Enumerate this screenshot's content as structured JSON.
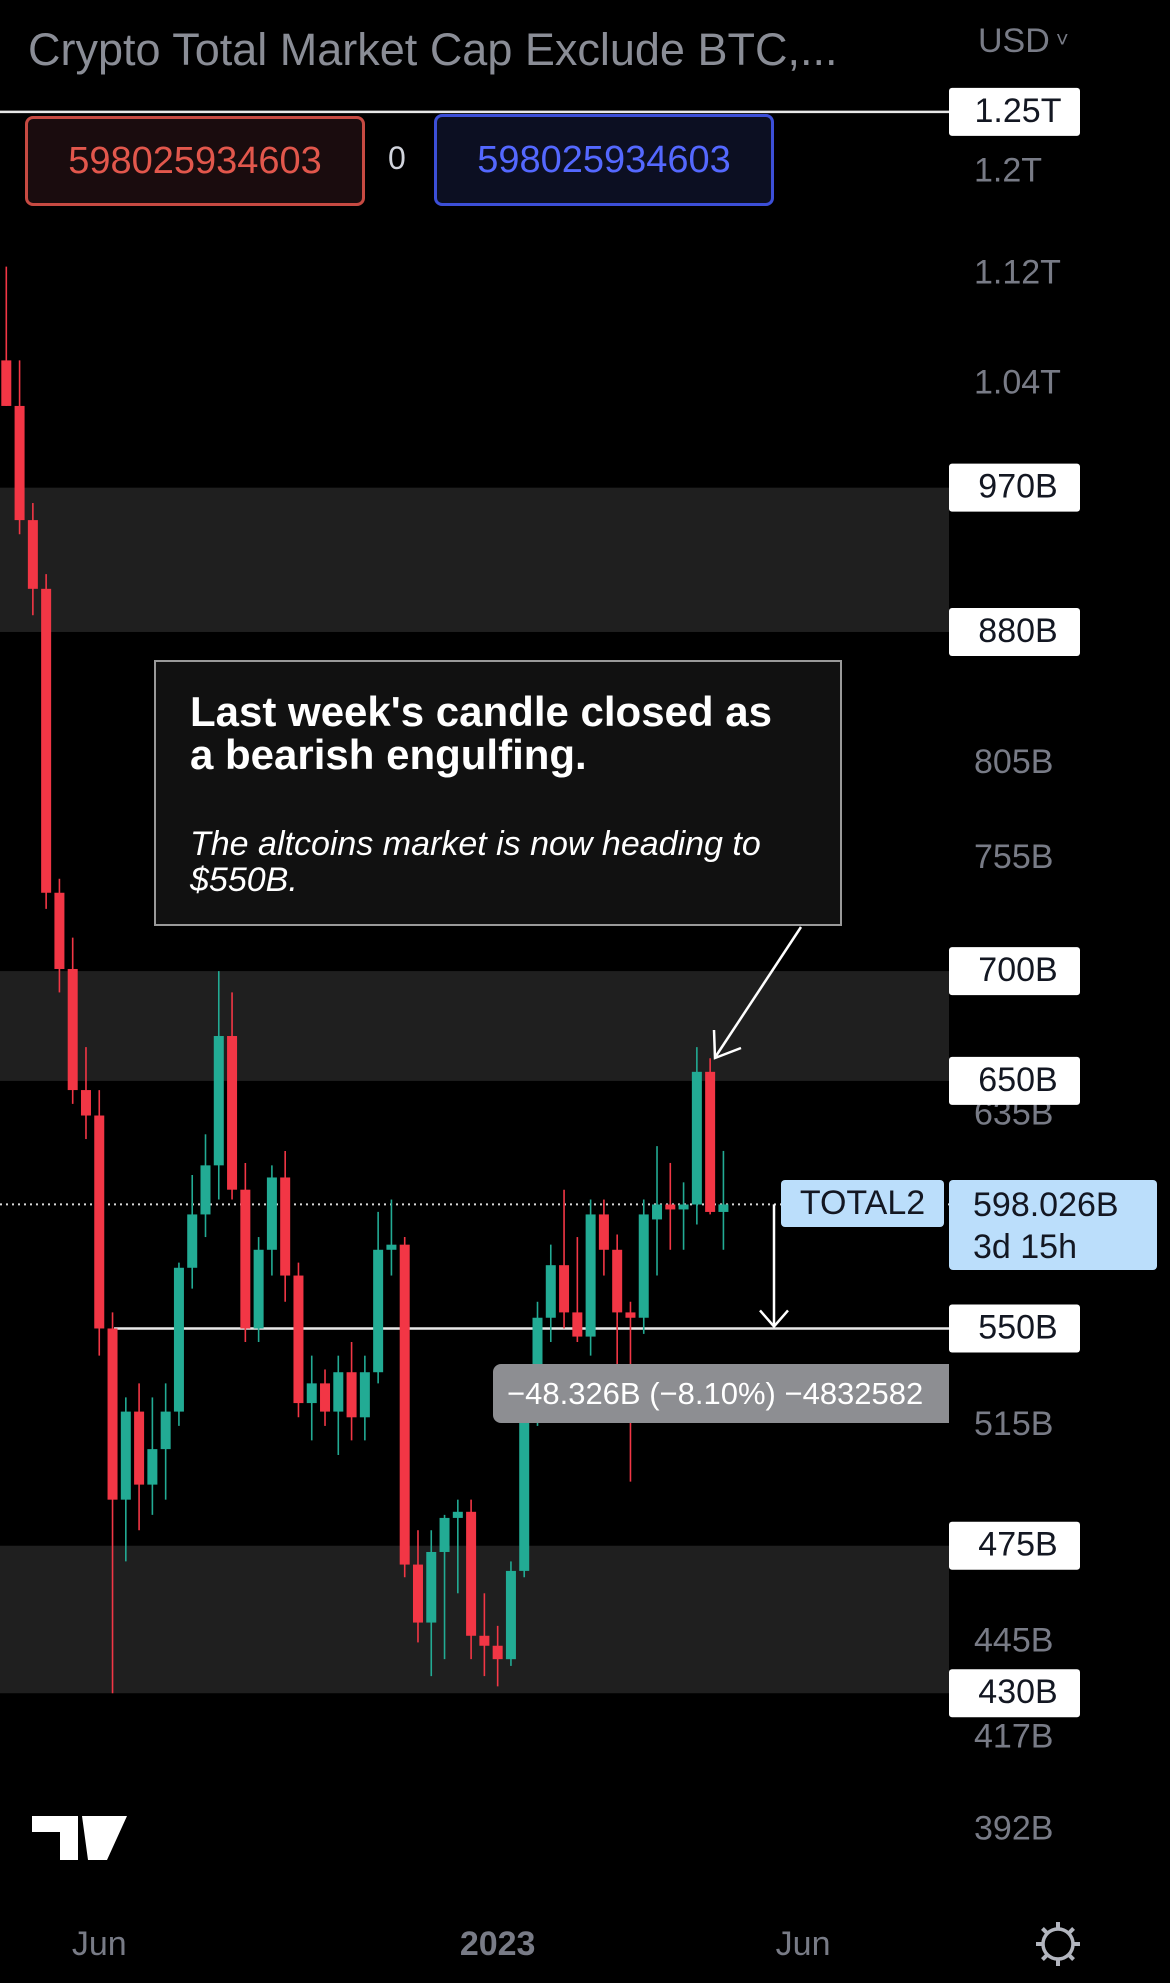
{
  "header": {
    "title": "Crypto Total Market Cap Exclude BTC,...",
    "currency": "USD"
  },
  "order": {
    "sell": "598025934603",
    "qty": "0",
    "buy": "598025934603"
  },
  "chart_data": {
    "type": "candlestick",
    "log_scale": true,
    "ylim": [
      374,
      1348
    ],
    "yticks": [
      {
        "value": 1200,
        "label": "1.2T"
      },
      {
        "value": 1120,
        "label": "1.12T"
      },
      {
        "value": 1040,
        "label": "1.04T"
      },
      {
        "value": 805,
        "label": "805B"
      },
      {
        "value": 755,
        "label": "755B"
      },
      {
        "value": 635,
        "label": "635B"
      },
      {
        "value": 515,
        "label": "515B"
      },
      {
        "value": 445,
        "label": "445B"
      },
      {
        "value": 417,
        "label": "417B"
      },
      {
        "value": 392,
        "label": "392B"
      }
    ],
    "levels": [
      {
        "value": 1250,
        "label": "1.25T"
      },
      {
        "value": 970,
        "label": "970B"
      },
      {
        "value": 880,
        "label": "880B"
      },
      {
        "value": 700,
        "label": "700B"
      },
      {
        "value": 650,
        "label": "650B"
      },
      {
        "value": 550,
        "label": "550B"
      },
      {
        "value": 475,
        "label": "475B"
      },
      {
        "value": 430,
        "label": "430B"
      }
    ],
    "zones": [
      [
        970,
        880
      ],
      [
        700,
        650
      ],
      [
        475,
        430
      ]
    ],
    "xticks": [
      {
        "value": 7,
        "label": "Jun"
      },
      {
        "value": 37,
        "label": "2023"
      },
      {
        "value": 60,
        "label": "Jun"
      }
    ],
    "up_color": "#22ab94",
    "down_color": "#f23645",
    "candles": [
      {
        "open": 1057,
        "high": 1126,
        "low": 1025,
        "close": 1025
      },
      {
        "open": 1025,
        "high": 1057,
        "low": 940,
        "close": 949
      },
      {
        "open": 949,
        "high": 960,
        "low": 890,
        "close": 906
      },
      {
        "open": 906,
        "high": 915,
        "low": 730,
        "close": 738
      },
      {
        "open": 738,
        "high": 745,
        "low": 690,
        "close": 701
      },
      {
        "open": 701,
        "high": 716,
        "low": 640,
        "close": 646
      },
      {
        "open": 646,
        "high": 665,
        "low": 625,
        "close": 635
      },
      {
        "open": 635,
        "high": 646,
        "low": 540,
        "close": 550
      },
      {
        "open": 550,
        "high": 556,
        "low": 430,
        "close": 490
      },
      {
        "open": 490,
        "high": 525,
        "low": 470,
        "close": 520
      },
      {
        "open": 520,
        "high": 530,
        "low": 480,
        "close": 495
      },
      {
        "open": 495,
        "high": 525,
        "low": 485,
        "close": 507
      },
      {
        "open": 507,
        "high": 530,
        "low": 490,
        "close": 520
      },
      {
        "open": 520,
        "high": 575,
        "low": 515,
        "close": 573
      },
      {
        "open": 573,
        "high": 610,
        "low": 565,
        "close": 594
      },
      {
        "open": 594,
        "high": 627,
        "low": 585,
        "close": 614
      },
      {
        "open": 614,
        "high": 700,
        "low": 600,
        "close": 670
      },
      {
        "open": 670,
        "high": 690,
        "low": 600,
        "close": 604
      },
      {
        "open": 604,
        "high": 615,
        "low": 545,
        "close": 550
      },
      {
        "open": 550,
        "high": 585,
        "low": 545,
        "close": 580
      },
      {
        "open": 580,
        "high": 614,
        "low": 570,
        "close": 609
      },
      {
        "open": 609,
        "high": 620,
        "low": 560,
        "close": 570
      },
      {
        "open": 570,
        "high": 575,
        "low": 518,
        "close": 523
      },
      {
        "open": 523,
        "high": 540,
        "low": 510,
        "close": 530
      },
      {
        "open": 530,
        "high": 535,
        "low": 515,
        "close": 520
      },
      {
        "open": 520,
        "high": 540,
        "low": 505,
        "close": 534
      },
      {
        "open": 534,
        "high": 545,
        "low": 510,
        "close": 518
      },
      {
        "open": 518,
        "high": 540,
        "low": 510,
        "close": 534
      },
      {
        "open": 534,
        "high": 595,
        "low": 530,
        "close": 580
      },
      {
        "open": 580,
        "high": 600,
        "low": 570,
        "close": 582
      },
      {
        "open": 582,
        "high": 585,
        "low": 465,
        "close": 469
      },
      {
        "open": 469,
        "high": 480,
        "low": 445,
        "close": 451
      },
      {
        "open": 451,
        "high": 480,
        "low": 435,
        "close": 473
      },
      {
        "open": 473,
        "high": 485,
        "low": 440,
        "close": 484
      },
      {
        "open": 484,
        "high": 490,
        "low": 460,
        "close": 486
      },
      {
        "open": 486,
        "high": 490,
        "low": 440,
        "close": 447
      },
      {
        "open": 447,
        "high": 460,
        "low": 435,
        "close": 444
      },
      {
        "open": 444,
        "high": 450,
        "low": 432,
        "close": 440
      },
      {
        "open": 440,
        "high": 470,
        "low": 438,
        "close": 467
      },
      {
        "open": 467,
        "high": 525,
        "low": 465,
        "close": 523
      },
      {
        "open": 523,
        "high": 560,
        "low": 515,
        "close": 554
      },
      {
        "open": 554,
        "high": 582,
        "low": 545,
        "close": 574
      },
      {
        "open": 574,
        "high": 604,
        "low": 550,
        "close": 556
      },
      {
        "open": 556,
        "high": 585,
        "low": 545,
        "close": 547
      },
      {
        "open": 547,
        "high": 600,
        "low": 540,
        "close": 594
      },
      {
        "open": 594,
        "high": 600,
        "low": 570,
        "close": 580
      },
      {
        "open": 580,
        "high": 586,
        "low": 535,
        "close": 556
      },
      {
        "open": 556,
        "high": 560,
        "low": 496,
        "close": 554
      },
      {
        "open": 554,
        "high": 600,
        "low": 548,
        "close": 594
      },
      {
        "open": 592,
        "high": 622,
        "low": 570,
        "close": 598
      },
      {
        "open": 598,
        "high": 615,
        "low": 580,
        "close": 596
      },
      {
        "open": 596,
        "high": 607,
        "low": 580,
        "close": 598
      },
      {
        "open": 598,
        "high": 665,
        "low": 590,
        "close": 654
      },
      {
        "open": 654,
        "high": 660,
        "low": 594,
        "close": 595
      },
      {
        "open": 595,
        "high": 620,
        "low": 580,
        "close": 598.026
      }
    ],
    "last_price": {
      "symbol": "TOTAL2",
      "value": 598.026,
      "label": "598.026B",
      "countdown": "3d 15h"
    },
    "measure": {
      "label": "−48.326B (−8.10%) −4832582"
    },
    "annotation": {
      "title": "Last week's candle closed as a bearish engulfing.",
      "text": "The altcoins market is now heading to $550B."
    }
  }
}
